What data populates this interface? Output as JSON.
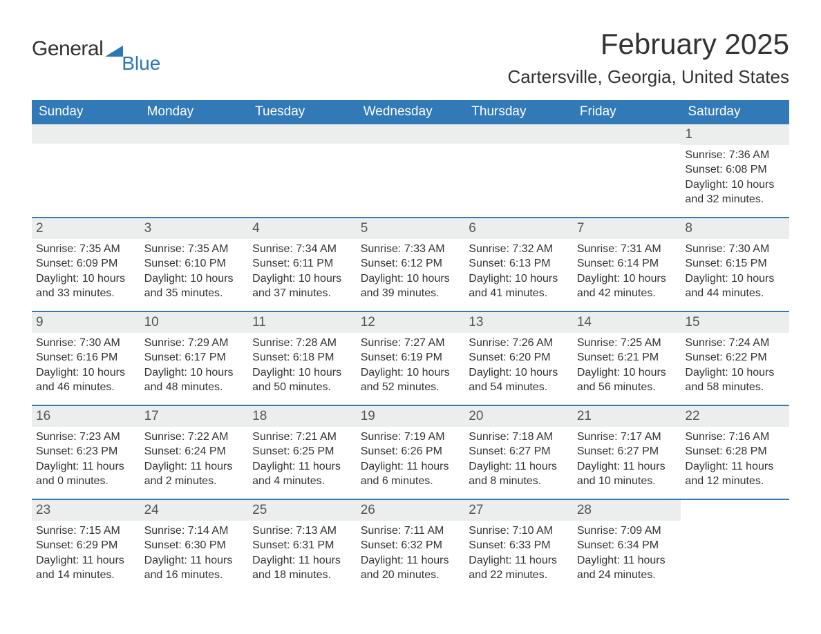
{
  "brand": {
    "word1": "General",
    "word2": "Blue",
    "sail_color": "#2a76b8"
  },
  "title": "February 2025",
  "location": "Cartersville, Georgia, United States",
  "colors": {
    "header_bg": "#3279b7",
    "band_bg": "#eceded",
    "text": "#333333",
    "brand_blue": "#2a76b8"
  },
  "weekdays": [
    "Sunday",
    "Monday",
    "Tuesday",
    "Wednesday",
    "Thursday",
    "Friday",
    "Saturday"
  ],
  "weeks": [
    [
      {
        "blank": true
      },
      {
        "blank": true
      },
      {
        "blank": true
      },
      {
        "blank": true
      },
      {
        "blank": true
      },
      {
        "blank": true
      },
      {
        "num": "1",
        "sunrise": "Sunrise: 7:36 AM",
        "sunset": "Sunset: 6:08 PM",
        "daylight": "Daylight: 10 hours and 32 minutes."
      }
    ],
    [
      {
        "num": "2",
        "sunrise": "Sunrise: 7:35 AM",
        "sunset": "Sunset: 6:09 PM",
        "daylight": "Daylight: 10 hours and 33 minutes."
      },
      {
        "num": "3",
        "sunrise": "Sunrise: 7:35 AM",
        "sunset": "Sunset: 6:10 PM",
        "daylight": "Daylight: 10 hours and 35 minutes."
      },
      {
        "num": "4",
        "sunrise": "Sunrise: 7:34 AM",
        "sunset": "Sunset: 6:11 PM",
        "daylight": "Daylight: 10 hours and 37 minutes."
      },
      {
        "num": "5",
        "sunrise": "Sunrise: 7:33 AM",
        "sunset": "Sunset: 6:12 PM",
        "daylight": "Daylight: 10 hours and 39 minutes."
      },
      {
        "num": "6",
        "sunrise": "Sunrise: 7:32 AM",
        "sunset": "Sunset: 6:13 PM",
        "daylight": "Daylight: 10 hours and 41 minutes."
      },
      {
        "num": "7",
        "sunrise": "Sunrise: 7:31 AM",
        "sunset": "Sunset: 6:14 PM",
        "daylight": "Daylight: 10 hours and 42 minutes."
      },
      {
        "num": "8",
        "sunrise": "Sunrise: 7:30 AM",
        "sunset": "Sunset: 6:15 PM",
        "daylight": "Daylight: 10 hours and 44 minutes."
      }
    ],
    [
      {
        "num": "9",
        "sunrise": "Sunrise: 7:30 AM",
        "sunset": "Sunset: 6:16 PM",
        "daylight": "Daylight: 10 hours and 46 minutes."
      },
      {
        "num": "10",
        "sunrise": "Sunrise: 7:29 AM",
        "sunset": "Sunset: 6:17 PM",
        "daylight": "Daylight: 10 hours and 48 minutes."
      },
      {
        "num": "11",
        "sunrise": "Sunrise: 7:28 AM",
        "sunset": "Sunset: 6:18 PM",
        "daylight": "Daylight: 10 hours and 50 minutes."
      },
      {
        "num": "12",
        "sunrise": "Sunrise: 7:27 AM",
        "sunset": "Sunset: 6:19 PM",
        "daylight": "Daylight: 10 hours and 52 minutes."
      },
      {
        "num": "13",
        "sunrise": "Sunrise: 7:26 AM",
        "sunset": "Sunset: 6:20 PM",
        "daylight": "Daylight: 10 hours and 54 minutes."
      },
      {
        "num": "14",
        "sunrise": "Sunrise: 7:25 AM",
        "sunset": "Sunset: 6:21 PM",
        "daylight": "Daylight: 10 hours and 56 minutes."
      },
      {
        "num": "15",
        "sunrise": "Sunrise: 7:24 AM",
        "sunset": "Sunset: 6:22 PM",
        "daylight": "Daylight: 10 hours and 58 minutes."
      }
    ],
    [
      {
        "num": "16",
        "sunrise": "Sunrise: 7:23 AM",
        "sunset": "Sunset: 6:23 PM",
        "daylight": "Daylight: 11 hours and 0 minutes."
      },
      {
        "num": "17",
        "sunrise": "Sunrise: 7:22 AM",
        "sunset": "Sunset: 6:24 PM",
        "daylight": "Daylight: 11 hours and 2 minutes."
      },
      {
        "num": "18",
        "sunrise": "Sunrise: 7:21 AM",
        "sunset": "Sunset: 6:25 PM",
        "daylight": "Daylight: 11 hours and 4 minutes."
      },
      {
        "num": "19",
        "sunrise": "Sunrise: 7:19 AM",
        "sunset": "Sunset: 6:26 PM",
        "daylight": "Daylight: 11 hours and 6 minutes."
      },
      {
        "num": "20",
        "sunrise": "Sunrise: 7:18 AM",
        "sunset": "Sunset: 6:27 PM",
        "daylight": "Daylight: 11 hours and 8 minutes."
      },
      {
        "num": "21",
        "sunrise": "Sunrise: 7:17 AM",
        "sunset": "Sunset: 6:27 PM",
        "daylight": "Daylight: 11 hours and 10 minutes."
      },
      {
        "num": "22",
        "sunrise": "Sunrise: 7:16 AM",
        "sunset": "Sunset: 6:28 PM",
        "daylight": "Daylight: 11 hours and 12 minutes."
      }
    ],
    [
      {
        "num": "23",
        "sunrise": "Sunrise: 7:15 AM",
        "sunset": "Sunset: 6:29 PM",
        "daylight": "Daylight: 11 hours and 14 minutes."
      },
      {
        "num": "24",
        "sunrise": "Sunrise: 7:14 AM",
        "sunset": "Sunset: 6:30 PM",
        "daylight": "Daylight: 11 hours and 16 minutes."
      },
      {
        "num": "25",
        "sunrise": "Sunrise: 7:13 AM",
        "sunset": "Sunset: 6:31 PM",
        "daylight": "Daylight: 11 hours and 18 minutes."
      },
      {
        "num": "26",
        "sunrise": "Sunrise: 7:11 AM",
        "sunset": "Sunset: 6:32 PM",
        "daylight": "Daylight: 11 hours and 20 minutes."
      },
      {
        "num": "27",
        "sunrise": "Sunrise: 7:10 AM",
        "sunset": "Sunset: 6:33 PM",
        "daylight": "Daylight: 11 hours and 22 minutes."
      },
      {
        "num": "28",
        "sunrise": "Sunrise: 7:09 AM",
        "sunset": "Sunset: 6:34 PM",
        "daylight": "Daylight: 11 hours and 24 minutes."
      },
      {
        "blank": true,
        "noband": true
      }
    ]
  ]
}
